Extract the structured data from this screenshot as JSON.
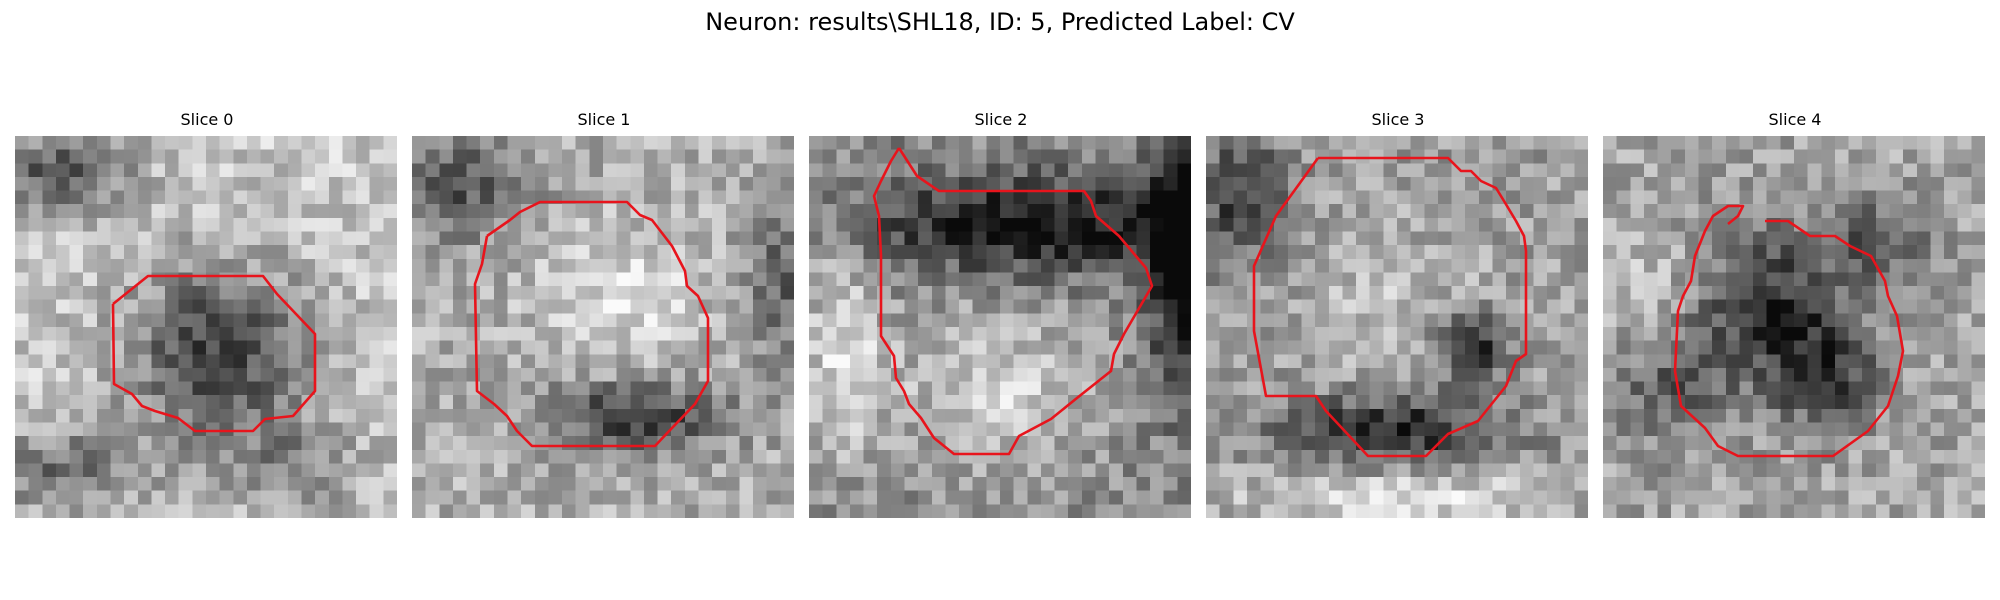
{
  "figure": {
    "title": "Neuron: results\\SHL18, ID: 5, Predicted Label: CV",
    "contour_color": "#e8141c",
    "colormap": "gray"
  },
  "panels": [
    {
      "title": "Slice 0",
      "description": "grayscale image slice with dark round neuron body outlined by red contour"
    },
    {
      "title": "Slice 1",
      "description": "grayscale image slice with brighter round cell outlined by red contour"
    },
    {
      "title": "Slice 2",
      "description": "grayscale image slice with tall irregular cell outlined by red contour"
    },
    {
      "title": "Slice 3",
      "description": "grayscale image slice with large round cell outlined by red contour"
    },
    {
      "title": "Slice 4",
      "description": "grayscale image slice with dark irregular cell outlined by red contour"
    }
  ]
}
